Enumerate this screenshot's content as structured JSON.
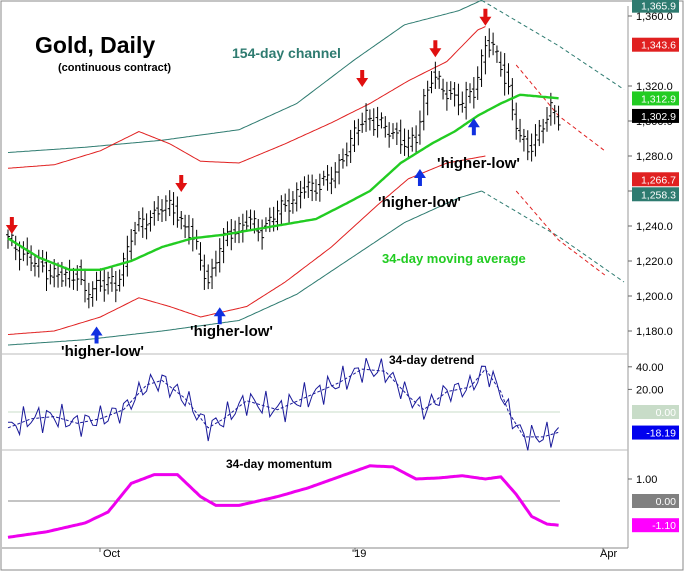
{
  "chart_data": [
    {
      "panel": "price",
      "type": "ohlc",
      "title": "Gold, Daily",
      "subtitle": "(continuous contract)",
      "ylim": [
        1170,
        1372
      ],
      "y_ticks": [
        1180,
        1200,
        1220,
        1240,
        1260,
        1280,
        1300,
        1320,
        1360
      ],
      "x_ticks": [
        "Oct",
        "'19",
        "Apr"
      ],
      "value_tags": [
        {
          "text": "1,365.9",
          "value": 1365.9,
          "color": "#2e7b70"
        },
        {
          "text": "1,343.6",
          "value": 1343.6,
          "color": "#e02020"
        },
        {
          "text": "1,312.9",
          "value": 1312.9,
          "color": "#22cc22"
        },
        {
          "text": "1,302.9",
          "value": 1302.9,
          "color": "#000000"
        },
        {
          "text": "1,266.7",
          "value": 1266.7,
          "color": "#e02020"
        },
        {
          "text": "1,258.3",
          "value": 1258.3,
          "color": "#2e7b70"
        }
      ],
      "close_anchors": [
        [
          0,
          1232
        ],
        [
          6,
          1220
        ],
        [
          10,
          1215
        ],
        [
          14,
          1210
        ],
        [
          18,
          1214
        ],
        [
          20,
          1200
        ],
        [
          23,
          1206
        ],
        [
          26,
          1210
        ],
        [
          28,
          1203
        ],
        [
          32,
          1236
        ],
        [
          36,
          1243
        ],
        [
          40,
          1252
        ],
        [
          43,
          1249
        ],
        [
          47,
          1237
        ],
        [
          50,
          1220
        ],
        [
          52,
          1208
        ],
        [
          55,
          1228
        ],
        [
          58,
          1237
        ],
        [
          62,
          1242
        ],
        [
          66,
          1238
        ],
        [
          70,
          1248
        ],
        [
          74,
          1256
        ],
        [
          78,
          1262
        ],
        [
          82,
          1265
        ],
        [
          85,
          1270
        ],
        [
          88,
          1285
        ],
        [
          91,
          1295
        ],
        [
          93,
          1304
        ],
        [
          96,
          1298
        ],
        [
          99,
          1294
        ],
        [
          101,
          1292
        ],
        [
          104,
          1286
        ],
        [
          106,
          1290
        ],
        [
          108,
          1313
        ],
        [
          110,
          1325
        ],
        [
          113,
          1318
        ],
        [
          116,
          1314
        ],
        [
          118,
          1310
        ],
        [
          121,
          1318
        ],
        [
          124,
          1344
        ],
        [
          126,
          1340
        ],
        [
          128,
          1333
        ],
        [
          130,
          1318
        ],
        [
          131,
          1305
        ],
        [
          133,
          1290
        ],
        [
          135,
          1284
        ],
        [
          137,
          1292
        ],
        [
          139,
          1296
        ],
        [
          141,
          1307
        ],
        [
          143,
          1303
        ]
      ],
      "channel_154_day": {
        "name": "154-day channel",
        "color": "#2e7b70",
        "upper": [
          [
            0,
            1282
          ],
          [
            20,
            1285
          ],
          [
            40,
            1289
          ],
          [
            60,
            1295
          ],
          [
            75,
            1310
          ],
          [
            90,
            1335
          ],
          [
            103,
            1355
          ],
          [
            117,
            1363
          ],
          [
            123,
            1369
          ],
          [
            143,
            1343
          ],
          [
            160,
            1318
          ]
        ],
        "lower": [
          [
            0,
            1172
          ],
          [
            20,
            1175
          ],
          [
            40,
            1180
          ],
          [
            60,
            1186
          ],
          [
            75,
            1201
          ],
          [
            90,
            1223
          ],
          [
            103,
            1242
          ],
          [
            117,
            1256
          ],
          [
            123,
            1260
          ],
          [
            143,
            1234
          ],
          [
            160,
            1208
          ]
        ]
      },
      "inner_band": {
        "color": "#e02020",
        "upper": [
          [
            0,
            1273
          ],
          [
            12,
            1275
          ],
          [
            24,
            1283
          ],
          [
            34,
            1294
          ],
          [
            42,
            1287
          ],
          [
            50,
            1277
          ],
          [
            60,
            1276
          ],
          [
            72,
            1287
          ],
          [
            84,
            1299
          ],
          [
            94,
            1310
          ],
          [
            104,
            1323
          ],
          [
            114,
            1334
          ],
          [
            122,
            1352
          ],
          [
            124,
            1354
          ],
          [
            132,
            1332
          ],
          [
            143,
            1303
          ],
          [
            155,
            1283
          ]
        ],
        "lower": [
          [
            0,
            1178
          ],
          [
            12,
            1180
          ],
          [
            24,
            1188
          ],
          [
            34,
            1199
          ],
          [
            42,
            1194
          ],
          [
            50,
            1188
          ],
          [
            62,
            1194
          ],
          [
            72,
            1208
          ],
          [
            84,
            1228
          ],
          [
            96,
            1252
          ],
          [
            104,
            1267
          ],
          [
            114,
            1276
          ],
          [
            124,
            1280
          ],
          [
            132,
            1260
          ],
          [
            143,
            1232
          ],
          [
            155,
            1212
          ]
        ]
      },
      "moving_average_34_day": {
        "name": "34-day moving average",
        "color": "#22cc22",
        "points": [
          [
            0,
            1233
          ],
          [
            8,
            1222
          ],
          [
            16,
            1215
          ],
          [
            24,
            1215
          ],
          [
            32,
            1220
          ],
          [
            40,
            1228
          ],
          [
            48,
            1233
          ],
          [
            56,
            1235
          ],
          [
            64,
            1238
          ],
          [
            72,
            1241
          ],
          [
            80,
            1244
          ],
          [
            88,
            1253
          ],
          [
            94,
            1260
          ],
          [
            102,
            1276
          ],
          [
            110,
            1287
          ],
          [
            116,
            1294
          ],
          [
            122,
            1303
          ],
          [
            128,
            1310
          ],
          [
            133,
            1315
          ],
          [
            143,
            1313
          ]
        ]
      },
      "down_arrows": [
        [
          1,
          1236
        ],
        [
          45,
          1260
        ],
        [
          92,
          1320
        ],
        [
          111,
          1337
        ],
        [
          124,
          1355
        ]
      ],
      "up_arrows": [
        [
          23,
          1182
        ],
        [
          55,
          1193
        ],
        [
          107,
          1272
        ],
        [
          121,
          1301
        ]
      ],
      "annotations": [
        {
          "text": "154-day channel",
          "color": "#2e7b70"
        },
        {
          "text": "'higher-low'",
          "color": "#000000"
        },
        {
          "text": "'higher-low'",
          "color": "#000000"
        },
        {
          "text": "'higher-low'",
          "color": "#000000"
        },
        {
          "text": "'higher-low'",
          "color": "#000000"
        },
        {
          "text": "34-day moving average",
          "color": "#22cc22"
        }
      ]
    },
    {
      "panel": "detrend",
      "type": "line",
      "title": "34-day detrend",
      "ylim": [
        -25,
        50
      ],
      "y_ticks": [
        "40.00",
        "20.00"
      ],
      "zero_line": 0,
      "value_tags": [
        {
          "text": "0.00",
          "value": 0,
          "color": "#c8dcc8"
        },
        {
          "text": "-18.19",
          "value": -18.19,
          "color": "#0000ee"
        }
      ],
      "detrend_smooth": [
        [
          0,
          -14
        ],
        [
          6,
          -6
        ],
        [
          12,
          -4
        ],
        [
          18,
          -10
        ],
        [
          24,
          -6
        ],
        [
          30,
          2
        ],
        [
          36,
          24
        ],
        [
          40,
          28
        ],
        [
          46,
          12
        ],
        [
          52,
          -14
        ],
        [
          56,
          -6
        ],
        [
          62,
          10
        ],
        [
          70,
          2
        ],
        [
          78,
          14
        ],
        [
          86,
          26
        ],
        [
          92,
          38
        ],
        [
          98,
          36
        ],
        [
          104,
          14
        ],
        [
          108,
          2
        ],
        [
          114,
          18
        ],
        [
          120,
          22
        ],
        [
          124,
          38
        ],
        [
          128,
          18
        ],
        [
          130,
          0
        ],
        [
          134,
          -22
        ],
        [
          139,
          -22
        ],
        [
          143,
          -18
        ]
      ]
    },
    {
      "panel": "momentum",
      "type": "line",
      "title": "34-day momentum",
      "ylim": [
        -1.7,
        2.1
      ],
      "y_ticks": [
        "1.00"
      ],
      "zero_line": 0,
      "value_tags": [
        {
          "text": "0.00",
          "value": 0,
          "color": "#808080"
        },
        {
          "text": "-1.10",
          "value": -1.1,
          "color": "#ff00ff"
        }
      ],
      "points": [
        [
          0,
          -1.65
        ],
        [
          10,
          -1.4
        ],
        [
          20,
          -1.0
        ],
        [
          26,
          -0.5
        ],
        [
          32,
          0.8
        ],
        [
          38,
          1.2
        ],
        [
          44,
          1.2
        ],
        [
          50,
          0.2
        ],
        [
          54,
          -0.2
        ],
        [
          60,
          -0.2
        ],
        [
          70,
          0.2
        ],
        [
          78,
          0.6
        ],
        [
          86,
          1.1
        ],
        [
          94,
          1.6
        ],
        [
          100,
          1.55
        ],
        [
          106,
          1.0
        ],
        [
          112,
          1.05
        ],
        [
          118,
          1.15
        ],
        [
          124,
          1.0
        ],
        [
          128,
          1.1
        ],
        [
          132,
          0.3
        ],
        [
          136,
          -0.7
        ],
        [
          140,
          -1.05
        ],
        [
          143,
          -1.1
        ]
      ]
    }
  ]
}
